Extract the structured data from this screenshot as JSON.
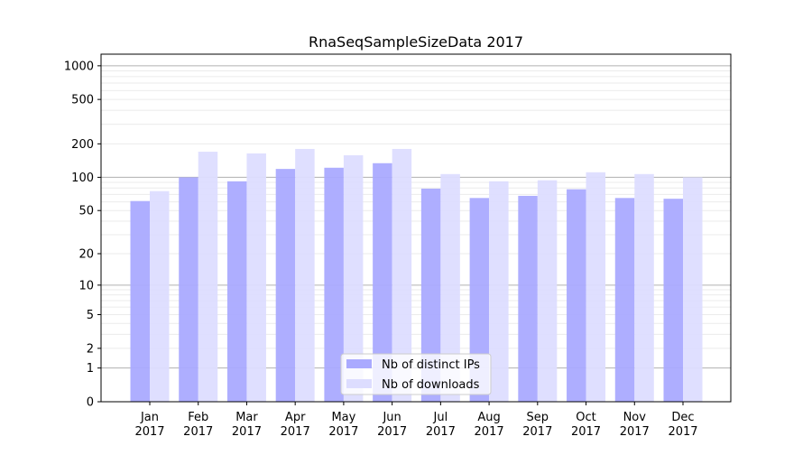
{
  "chart_data": {
    "type": "bar",
    "title": "RnaSeqSampleSizeData 2017",
    "xlabel": "",
    "ylabel": "",
    "yscale": "symlog (log10(y+1))",
    "ylim": [
      0,
      1270
    ],
    "yticks": [
      0,
      1,
      2,
      5,
      10,
      20,
      50,
      100,
      200,
      500,
      1000
    ],
    "grid": true,
    "legend_position": "lower-center",
    "categories": [
      "Jan\n2017",
      "Feb\n2017",
      "Mar\n2017",
      "Apr\n2017",
      "May\n2017",
      "Jun\n2017",
      "Jul\n2017",
      "Aug\n2017",
      "Sep\n2017",
      "Oct\n2017",
      "Nov\n2017",
      "Dec\n2017"
    ],
    "series": [
      {
        "name": "Nb of distinct IPs",
        "color": "#aaaaff",
        "values": [
          61,
          100,
          92,
          119,
          122,
          134,
          79,
          65,
          68,
          78,
          65,
          64
        ]
      },
      {
        "name": "Nb of downloads",
        "color": "#ddddff",
        "values": [
          75,
          170,
          164,
          180,
          158,
          180,
          107,
          92,
          94,
          111,
          107,
          100
        ]
      }
    ]
  }
}
